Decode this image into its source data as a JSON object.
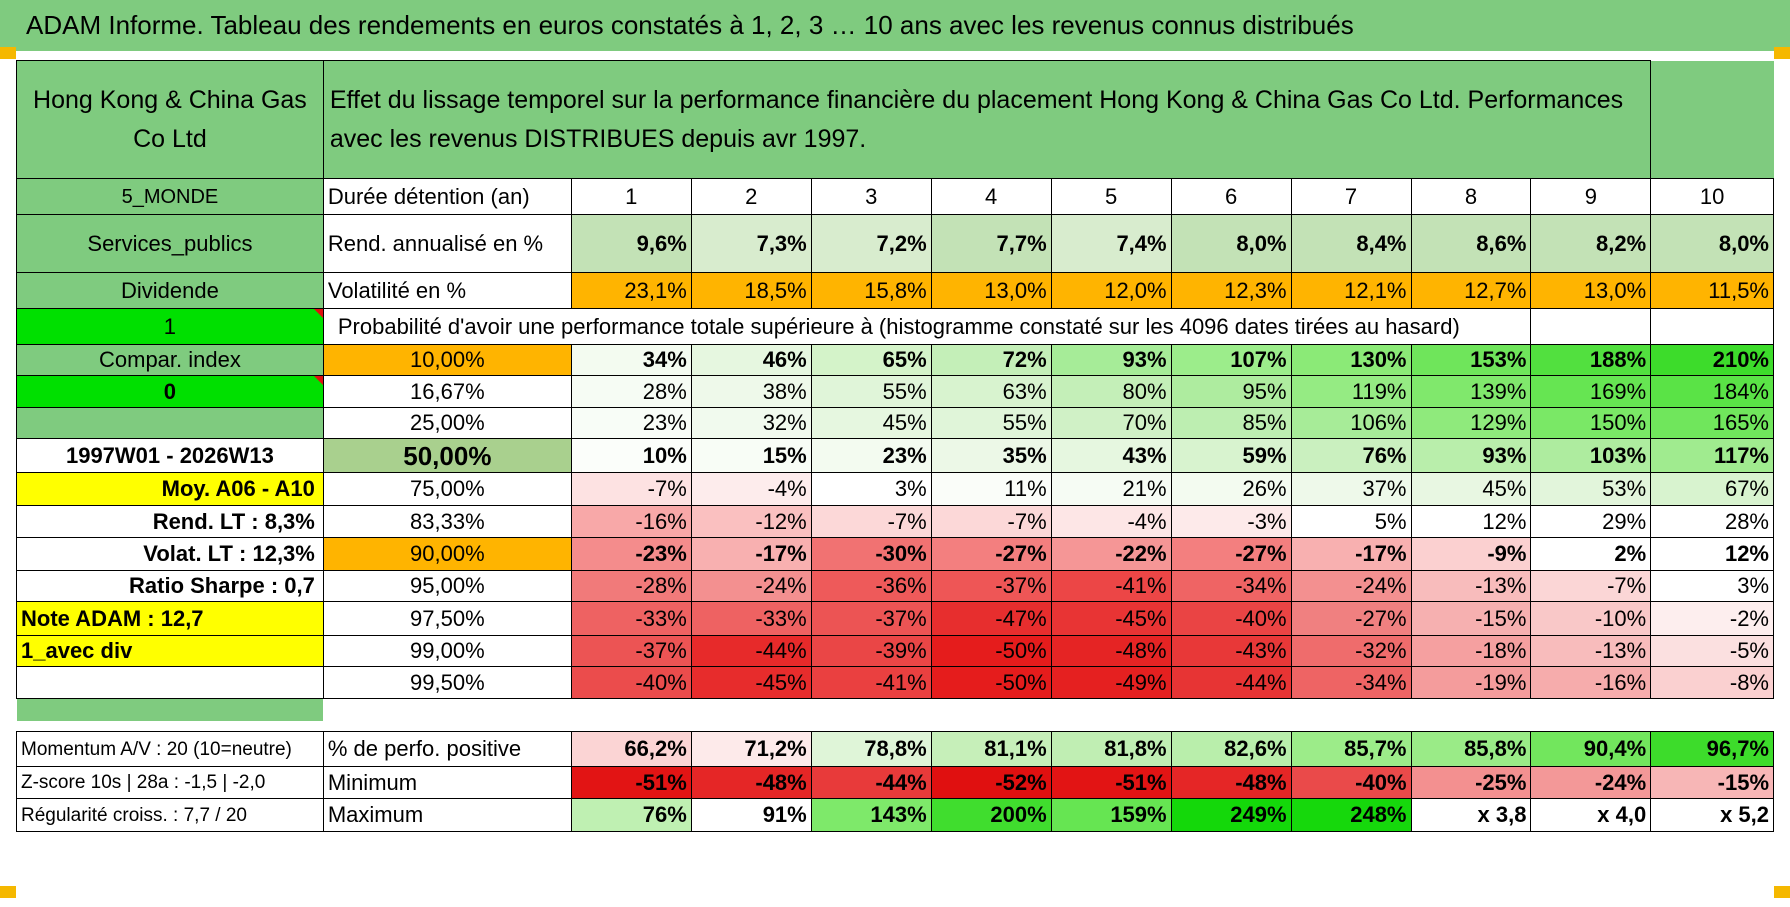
{
  "title": "ADAM Informe. Tableau des rendements en euros constatés à 1, 2, 3 … 10 ans avec les revenus connus distribués",
  "header": {
    "fund_name": "Hong Kong & China Gas Co Ltd",
    "description": "Effet du lissage temporel sur la performance financière du placement Hong Kong & China Gas Co Ltd. Performances avec les revenus DISTRIBUES depuis avr 1997."
  },
  "colors": {
    "header_green": "#7fcb7f",
    "bright_green": "#00e000",
    "orange": "#ffb400",
    "yellow": "#ffff00",
    "label_red": "#e01010"
  },
  "duration_row": {
    "label": "Durée détention (an)",
    "side": "5_MONDE",
    "years": [
      "1",
      "2",
      "3",
      "4",
      "5",
      "6",
      "7",
      "8",
      "9",
      "10"
    ]
  },
  "rend_row": {
    "side": "Services_publics",
    "label": "Rend. annualisé en %",
    "values": [
      "9,6%",
      "7,3%",
      "7,2%",
      "7,7%",
      "7,4%",
      "8,0%",
      "8,4%",
      "8,6%",
      "8,2%",
      "8,0%"
    ]
  },
  "vol_row": {
    "side": "Dividende",
    "label": "Volatilité en %",
    "values": [
      "23,1%",
      "18,5%",
      "15,8%",
      "13,0%",
      "12,0%",
      "12,3%",
      "12,1%",
      "12,7%",
      "13,0%",
      "11,5%"
    ]
  },
  "prob_header": {
    "side": "1",
    "text": "Probabilité d'avoir une performance totale supérieure à (histogramme constaté sur les 4096 dates tirées au hasard)"
  },
  "prob_rows": [
    {
      "side": "Compar. index",
      "level": "10,00%",
      "values": [
        "34%",
        "46%",
        "65%",
        "72%",
        "93%",
        "107%",
        "130%",
        "153%",
        "188%",
        "210%"
      ]
    },
    {
      "side": "0",
      "level": "16,67%",
      "values": [
        "28%",
        "38%",
        "55%",
        "63%",
        "80%",
        "95%",
        "119%",
        "139%",
        "169%",
        "184%"
      ]
    },
    {
      "side": "",
      "level": "25,00%",
      "values": [
        "23%",
        "32%",
        "45%",
        "55%",
        "70%",
        "85%",
        "106%",
        "129%",
        "150%",
        "165%"
      ]
    },
    {
      "side": "1997W01 - 2026W13",
      "level": "50,00%",
      "values": [
        "10%",
        "15%",
        "23%",
        "35%",
        "43%",
        "59%",
        "76%",
        "93%",
        "103%",
        "117%"
      ]
    },
    {
      "side": "Moy. A06 - A10",
      "level": "75,00%",
      "values": [
        "-7%",
        "-4%",
        "3%",
        "11%",
        "21%",
        "26%",
        "37%",
        "45%",
        "53%",
        "67%"
      ]
    },
    {
      "side": "Rend. LT :   8,3%",
      "level": "83,33%",
      "values": [
        "-16%",
        "-12%",
        "-7%",
        "-7%",
        "-4%",
        "-3%",
        "5%",
        "12%",
        "29%",
        "28%"
      ]
    },
    {
      "side": "Volat. LT :   12,3%",
      "level": "90,00%",
      "values": [
        "-23%",
        "-17%",
        "-30%",
        "-27%",
        "-22%",
        "-27%",
        "-17%",
        "-9%",
        "2%",
        "12%"
      ]
    },
    {
      "side": "Ratio Sharpe :    0,7",
      "level": "95,00%",
      "values": [
        "-28%",
        "-24%",
        "-36%",
        "-37%",
        "-41%",
        "-34%",
        "-24%",
        "-13%",
        "-7%",
        "3%"
      ]
    },
    {
      "side": "Note ADAM : 12,7",
      "level": "97,50%",
      "values": [
        "-33%",
        "-33%",
        "-37%",
        "-47%",
        "-45%",
        "-40%",
        "-27%",
        "-15%",
        "-10%",
        "-2%"
      ]
    },
    {
      "side": "1_avec div",
      "level": "99,00%",
      "values": [
        "-37%",
        "-44%",
        "-39%",
        "-50%",
        "-48%",
        "-43%",
        "-32%",
        "-18%",
        "-13%",
        "-5%"
      ]
    },
    {
      "side": "",
      "level": "99,50%",
      "values": [
        "-40%",
        "-45%",
        "-41%",
        "-50%",
        "-49%",
        "-44%",
        "-34%",
        "-19%",
        "-16%",
        "-8%"
      ]
    }
  ],
  "stats_rows": [
    {
      "side": "Momentum A/V : 20 (10=neutre)",
      "label": "% de perfo. positive",
      "values": [
        "66,2%",
        "71,2%",
        "78,8%",
        "81,1%",
        "81,8%",
        "82,6%",
        "85,7%",
        "85,8%",
        "90,4%",
        "96,7%"
      ]
    },
    {
      "side": "Z-score 10s | 28a : -1,5 | -2,0",
      "label": "Minimum",
      "values": [
        "-51%",
        "-48%",
        "-44%",
        "-52%",
        "-51%",
        "-48%",
        "-40%",
        "-25%",
        "-24%",
        "-15%"
      ]
    },
    {
      "side": "Régularité croiss. : 7,7 / 20",
      "label": "Maximum",
      "values": [
        "76%",
        "91%",
        "143%",
        "200%",
        "159%",
        "249%",
        "248%",
        "x 3,8",
        "x 4,0",
        "x 5,2"
      ]
    }
  ]
}
